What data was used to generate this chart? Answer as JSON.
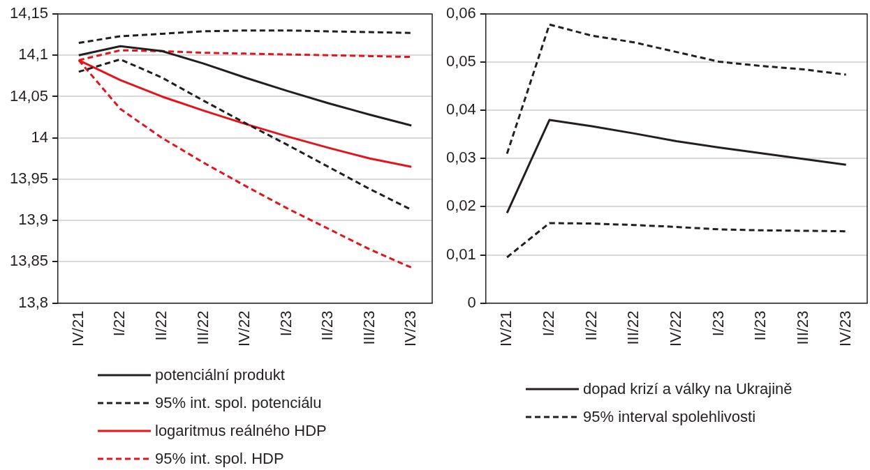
{
  "chart_data": [
    {
      "type": "line",
      "categories": [
        "IV/21",
        "I/22",
        "II/22",
        "III/22",
        "IV/22",
        "I/23",
        "II/23",
        "III/23",
        "IV/23"
      ],
      "ylim": [
        13.8,
        14.15
      ],
      "yticks": [
        {
          "value": 13.8,
          "label": "13,8"
        },
        {
          "value": 13.85,
          "label": "13,85"
        },
        {
          "value": 13.9,
          "label": "13,9"
        },
        {
          "value": 13.95,
          "label": "13,95"
        },
        14,
        {
          "value": 14.05,
          "label": "14,05"
        },
        {
          "value": 14.1,
          "label": "14,1"
        },
        {
          "value": 14.15,
          "label": "14,15"
        }
      ],
      "grid": "y",
      "legend": "bottom",
      "marker": "none",
      "series": [
        {
          "name": "potenciální produkt",
          "color": "#231f20",
          "line_style": "solid",
          "values": [
            14.1,
            14.111,
            14.105,
            14.09,
            14.073,
            14.057,
            14.042,
            14.028,
            14.015
          ]
        },
        {
          "name": "95% int. spol. potenciálu",
          "color": "#231f20",
          "line_style": "dashed",
          "values": [
            14.115,
            14.123,
            14.126,
            14.129,
            14.13,
            14.13,
            14.129,
            14.128,
            14.127
          ]
        },
        {
          "color": "#231f20",
          "line_style": "dashed",
          "values": [
            14.08,
            14.095,
            14.073,
            14.045,
            14.018,
            13.992,
            13.965,
            13.938,
            13.913
          ]
        },
        {
          "name": "logaritmus reálného HDP",
          "color": "#e3141b",
          "line_style": "solid",
          "values": [
            14.094,
            14.07,
            14.05,
            14.033,
            14.017,
            14.002,
            13.988,
            13.975,
            13.965
          ]
        },
        {
          "name": "95% int. spol. HDP",
          "color": "#e3141b",
          "line_style": "dashed",
          "values": [
            14.094,
            14.106,
            14.105,
            14.103,
            14.102,
            14.101,
            14.1,
            14.099,
            14.098
          ]
        },
        {
          "color": "#e3141b",
          "line_style": "dashed",
          "values": [
            14.094,
            14.035,
            14.0,
            13.97,
            13.942,
            13.915,
            13.89,
            13.865,
            13.843
          ]
        }
      ]
    },
    {
      "type": "line",
      "categories": [
        "IV/21",
        "I/22",
        "II/22",
        "III/22",
        "IV/22",
        "I/23",
        "II/23",
        "III/23",
        "IV/23"
      ],
      "ylim": [
        0,
        0.06
      ],
      "yticks": [
        0,
        {
          "value": 0.01,
          "label": "0,01"
        },
        {
          "value": 0.02,
          "label": "0,02"
        },
        {
          "value": 0.03,
          "label": "0,03"
        },
        {
          "value": 0.04,
          "label": "0,04"
        },
        {
          "value": 0.05,
          "label": "0,05"
        },
        {
          "value": 0.06,
          "label": "0,06"
        }
      ],
      "grid": "y",
      "legend": "bottom",
      "marker": "none",
      "series": [
        {
          "name": "dopad krizí a války na Ukrajině",
          "color": "#231f20",
          "line_style": "solid",
          "values": [
            0.0187,
            0.038,
            0.0367,
            0.0352,
            0.0336,
            0.0323,
            0.0311,
            0.0299,
            0.0287
          ]
        },
        {
          "name": "95% interval spolehlivosti",
          "color": "#231f20",
          "line_style": "dashed",
          "values": [
            0.031,
            0.0578,
            0.0555,
            0.0541,
            0.0521,
            0.0501,
            0.0492,
            0.0485,
            0.0474
          ]
        },
        {
          "color": "#231f20",
          "line_style": "dashed",
          "values": [
            0.0095,
            0.0166,
            0.0165,
            0.0162,
            0.0158,
            0.0153,
            0.0151,
            0.015,
            0.0149
          ]
        }
      ]
    }
  ]
}
